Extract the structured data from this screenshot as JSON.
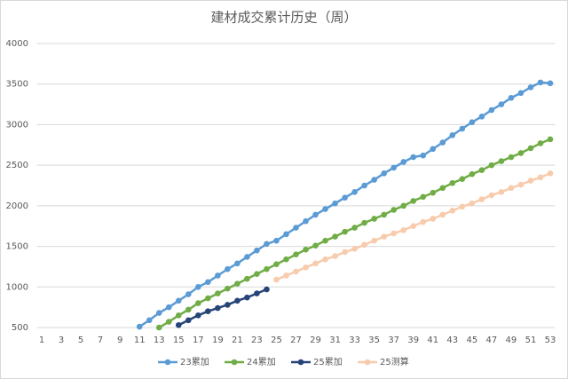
{
  "chart_data": {
    "type": "line",
    "title": "建材成交累计历史（周）",
    "categories": [
      1,
      null,
      3,
      null,
      5,
      null,
      7,
      null,
      9,
      null,
      11,
      null,
      13,
      null,
      15,
      null,
      17,
      null,
      19,
      null,
      21,
      null,
      23,
      null,
      25,
      null,
      27,
      null,
      29,
      null,
      31,
      null,
      33,
      null,
      35,
      null,
      37,
      null,
      39,
      null,
      41,
      null,
      43,
      null,
      45,
      null,
      47,
      null,
      49,
      null,
      51,
      null,
      53
    ],
    "series": [
      {
        "name": "23累加",
        "color": "#5b9bd5",
        "values": [
          null,
          null,
          null,
          null,
          null,
          null,
          null,
          null,
          null,
          null,
          510,
          590,
          680,
          750,
          830,
          910,
          1000,
          1060,
          1140,
          1220,
          1290,
          1370,
          1450,
          1530,
          1570,
          1650,
          1730,
          1810,
          1890,
          1960,
          2030,
          2100,
          2170,
          2250,
          2320,
          2400,
          2470,
          2540,
          2600,
          2620,
          2700,
          2780,
          2870,
          2950,
          3030,
          3100,
          3180,
          3250,
          3330,
          3390,
          3460,
          3520,
          3510
        ]
      },
      {
        "name": "24累加",
        "color": "#70ad47",
        "values": [
          null,
          null,
          null,
          null,
          null,
          null,
          null,
          null,
          null,
          null,
          null,
          null,
          500,
          570,
          650,
          720,
          800,
          860,
          920,
          980,
          1040,
          1100,
          1160,
          1220,
          1280,
          1340,
          1400,
          1460,
          1510,
          1570,
          1620,
          1680,
          1730,
          1790,
          1840,
          1890,
          1950,
          2000,
          2060,
          2110,
          2160,
          2220,
          2280,
          2330,
          2390,
          2440,
          2500,
          2550,
          2600,
          2650,
          2710,
          2770,
          2820
        ]
      },
      {
        "name": "25累加",
        "color": "#264478",
        "values": [
          null,
          null,
          null,
          null,
          null,
          null,
          null,
          null,
          null,
          null,
          null,
          null,
          null,
          null,
          530,
          590,
          650,
          700,
          740,
          780,
          830,
          870,
          920,
          970,
          null,
          null,
          null,
          null,
          null,
          null,
          null,
          null,
          null,
          null,
          null,
          null,
          null,
          null,
          null,
          null,
          null,
          null,
          null,
          null,
          null,
          null,
          null,
          null,
          null,
          null,
          null,
          null,
          null
        ]
      },
      {
        "name": "25测算",
        "color": "#f8cbad",
        "values": [
          null,
          null,
          null,
          null,
          null,
          null,
          null,
          null,
          null,
          null,
          null,
          null,
          null,
          null,
          null,
          null,
          null,
          null,
          null,
          null,
          null,
          null,
          null,
          null,
          1090,
          1140,
          1190,
          1240,
          1290,
          1340,
          1380,
          1430,
          1470,
          1520,
          1570,
          1620,
          1660,
          1700,
          1750,
          1800,
          1840,
          1890,
          1940,
          1990,
          2030,
          2080,
          2130,
          2170,
          2220,
          2260,
          2310,
          2350,
          2400
        ]
      }
    ],
    "ylim": [
      500,
      4000
    ],
    "yticks": [
      500,
      1000,
      1500,
      2000,
      2500,
      3000,
      3500,
      4000
    ],
    "grid": true,
    "legend": "bottom"
  }
}
